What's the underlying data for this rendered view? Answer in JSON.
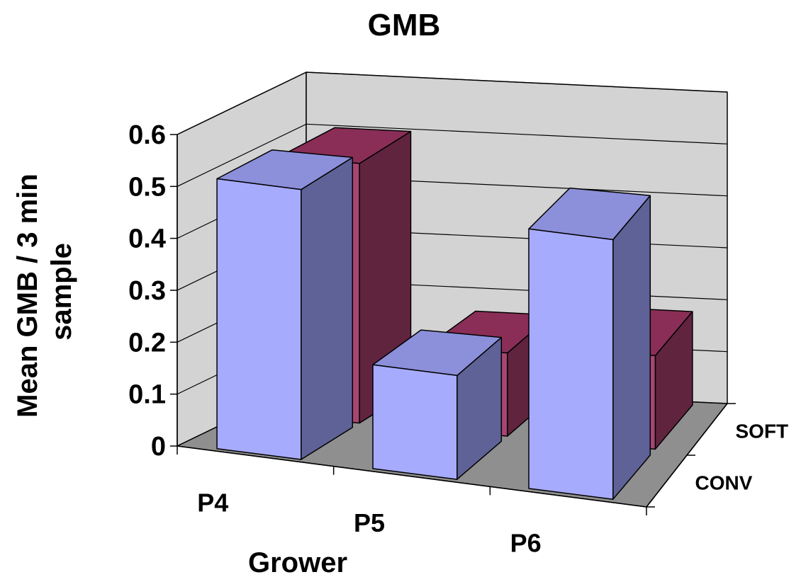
{
  "chart_data": {
    "type": "bar",
    "title": "GMB",
    "xlabel": "Grower",
    "ylabel_lines": [
      "Mean GMB / 3 min",
      "sample"
    ],
    "categories": [
      "P4",
      "P5",
      "P6"
    ],
    "yticks": [
      "0",
      "0.1",
      "0.2",
      "0.3",
      "0.4",
      "0.5",
      "0.6"
    ],
    "ylim": [
      0,
      0.6
    ],
    "grid": true,
    "series": [
      {
        "name": "CONV",
        "values": [
          0.52,
          0.2,
          0.5
        ]
      },
      {
        "name": "SOFT",
        "values": [
          0.5,
          0.16,
          0.18
        ]
      }
    ],
    "colors": {
      "CONV": {
        "front": "#A7ABFD",
        "top": "#8C90DA",
        "side": "#5E6296"
      },
      "SOFT": {
        "front": "#A84673",
        "top": "#8A2E57",
        "side": "#61243F"
      },
      "back_wall": "#D3D3D3",
      "floor": "#8F8F8F"
    }
  }
}
